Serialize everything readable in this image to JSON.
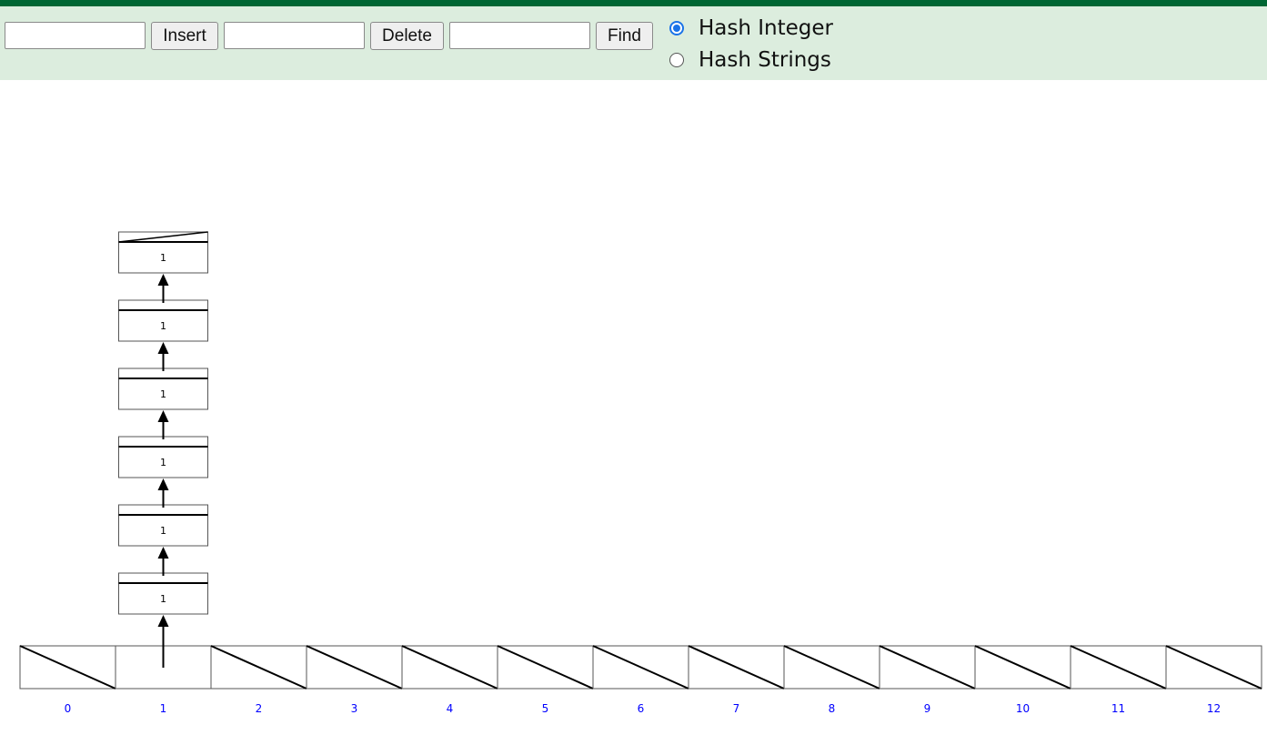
{
  "controls": {
    "insert_input": {
      "value": "",
      "placeholder": ""
    },
    "insert_label": "Insert",
    "delete_input": {
      "value": "",
      "placeholder": ""
    },
    "delete_label": "Delete",
    "find_input": {
      "value": "",
      "placeholder": ""
    },
    "find_label": "Find",
    "hash_options": [
      {
        "label": "Hash Integer",
        "checked": true
      },
      {
        "label": "Hash Strings",
        "checked": false
      }
    ]
  },
  "hash_table": {
    "indices": [
      "0",
      "1",
      "2",
      "3",
      "4",
      "5",
      "6",
      "7",
      "8",
      "9",
      "10",
      "11",
      "12"
    ],
    "buckets": [
      {
        "index": "0",
        "chain": []
      },
      {
        "index": "1",
        "chain": [
          "1",
          "1",
          "1",
          "1",
          "1",
          "1"
        ]
      },
      {
        "index": "2",
        "chain": []
      },
      {
        "index": "3",
        "chain": []
      },
      {
        "index": "4",
        "chain": []
      },
      {
        "index": "5",
        "chain": []
      },
      {
        "index": "6",
        "chain": []
      },
      {
        "index": "7",
        "chain": []
      },
      {
        "index": "8",
        "chain": []
      },
      {
        "index": "9",
        "chain": []
      },
      {
        "index": "10",
        "chain": []
      },
      {
        "index": "11",
        "chain": []
      },
      {
        "index": "12",
        "chain": []
      }
    ]
  },
  "colors": {
    "accent": "#006633",
    "toolbar_bg": "#dcedde",
    "index_label": "#0000ff",
    "line": "#000000",
    "cell_border": "#555555"
  }
}
